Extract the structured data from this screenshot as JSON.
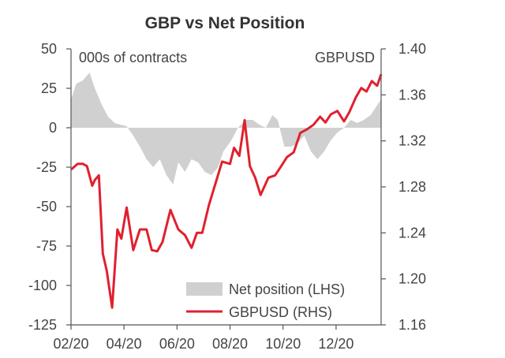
{
  "chart_data": {
    "type": "area+line",
    "title": "GBP vs Net Position",
    "left_axis_label": "000s of contracts",
    "right_axis_label": "GBPUSD",
    "left_ylim": [
      -125,
      50
    ],
    "right_ylim": [
      1.16,
      1.4
    ],
    "left_ticks": [
      "50",
      "25",
      "0",
      "-25",
      "-50",
      "-75",
      "-100",
      "-125"
    ],
    "left_tick_values": [
      50,
      25,
      0,
      -25,
      -50,
      -75,
      -100,
      -125
    ],
    "right_ticks": [
      "1.40",
      "1.36",
      "1.32",
      "1.28",
      "1.24",
      "1.20",
      "1.16"
    ],
    "right_tick_values": [
      1.4,
      1.36,
      1.32,
      1.28,
      1.24,
      1.2,
      1.16
    ],
    "x_domain": [
      0,
      11.7
    ],
    "x_tick_labels": [
      "02/20",
      "04/20",
      "06/20",
      "08/20",
      "10/20",
      "12/20"
    ],
    "x_tick_values": [
      0,
      2,
      4,
      6,
      8,
      10
    ],
    "legend": {
      "position": "bottom-right",
      "entries": [
        {
          "label": "Net position (LHS)",
          "color": "#d0d0d0",
          "kind": "area"
        },
        {
          "label": "GBPUSD (RHS)",
          "color": "#e0202e",
          "kind": "line"
        }
      ]
    },
    "series": [
      {
        "name": "Net position (LHS)",
        "axis": "left",
        "color": "#d0d0d0",
        "x": [
          0,
          0.2,
          0.45,
          0.7,
          0.9,
          1.15,
          1.4,
          1.65,
          1.85,
          2.1,
          2.35,
          2.6,
          2.85,
          3.1,
          3.35,
          3.6,
          3.85,
          4.05,
          4.3,
          4.55,
          4.8,
          5.05,
          5.3,
          5.55,
          5.75,
          6.05,
          6.3,
          6.6,
          6.85,
          7.1,
          7.35,
          7.6,
          7.8,
          8.05,
          8.3,
          8.55,
          8.8,
          9.05,
          9.3,
          9.55,
          9.8,
          10.05,
          10.3,
          10.55,
          10.8,
          11.05,
          11.3,
          11.5,
          11.7
        ],
        "values": [
          18,
          28,
          30,
          35,
          25,
          15,
          7,
          3,
          2,
          1,
          -5,
          -12,
          -20,
          -25,
          -20,
          -30,
          -36,
          -22,
          -28,
          -20,
          -22,
          -28,
          -30,
          -25,
          -15,
          -8,
          0,
          5,
          5,
          2,
          0,
          8,
          5,
          -12,
          -12,
          -10,
          -5,
          -15,
          -20,
          -15,
          -8,
          -3,
          0,
          5,
          3,
          5,
          8,
          13,
          18
        ]
      },
      {
        "name": "GBPUSD (RHS)",
        "axis": "right",
        "color": "#e0202e",
        "x": [
          0,
          0.25,
          0.45,
          0.6,
          0.8,
          0.9,
          1.05,
          1.2,
          1.35,
          1.55,
          1.75,
          1.9,
          2.1,
          2.35,
          2.6,
          2.85,
          3.05,
          3.25,
          3.45,
          3.75,
          4.05,
          4.3,
          4.55,
          4.75,
          4.95,
          5.2,
          5.45,
          5.7,
          6.0,
          6.15,
          6.35,
          6.55,
          6.75,
          6.95,
          7.15,
          7.45,
          7.7,
          7.9,
          8.15,
          8.4,
          8.65,
          8.9,
          9.15,
          9.4,
          9.6,
          9.8,
          10.05,
          10.3,
          10.5,
          10.75,
          10.95,
          11.15,
          11.35,
          11.55,
          11.7
        ],
        "values": [
          1.295,
          1.3,
          1.3,
          1.298,
          1.281,
          1.286,
          1.29,
          1.222,
          1.207,
          1.175,
          1.243,
          1.235,
          1.262,
          1.225,
          1.243,
          1.243,
          1.225,
          1.224,
          1.232,
          1.26,
          1.243,
          1.238,
          1.227,
          1.24,
          1.24,
          1.264,
          1.283,
          1.302,
          1.3,
          1.314,
          1.307,
          1.338,
          1.298,
          1.288,
          1.273,
          1.288,
          1.29,
          1.297,
          1.306,
          1.31,
          1.327,
          1.33,
          1.334,
          1.341,
          1.336,
          1.343,
          1.346,
          1.337,
          1.345,
          1.358,
          1.366,
          1.363,
          1.372,
          1.368,
          1.378
        ]
      }
    ]
  }
}
